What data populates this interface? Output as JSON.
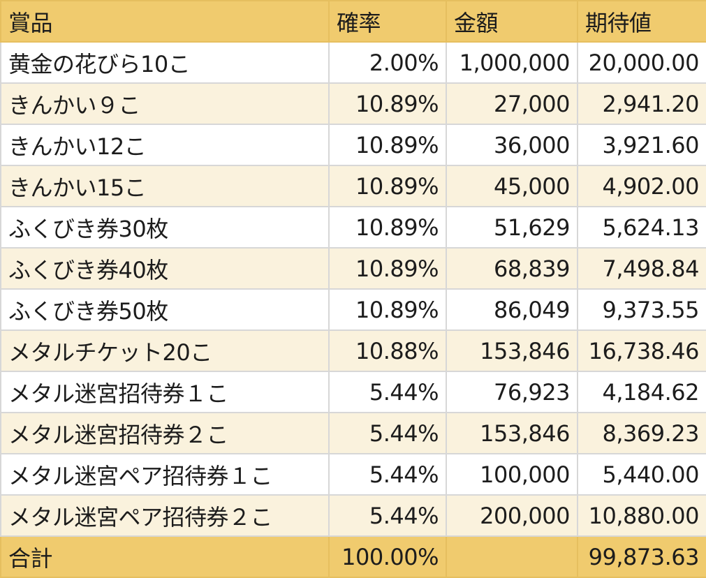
{
  "headers": [
    "賞品",
    "確率",
    "金額",
    "期待値"
  ],
  "rows": [
    [
      "黄金の花びら10こ",
      "2.00%",
      "1,000,000",
      "20,000.00"
    ],
    [
      "きんかい９こ",
      "10.89%",
      "27,000",
      "2,941.20"
    ],
    [
      "きんかい12こ",
      "10.89%",
      "36,000",
      "3,921.60"
    ],
    [
      "きんかい15こ",
      "10.89%",
      "45,000",
      "4,902.00"
    ],
    [
      "ふくびき券30枚",
      "10.89%",
      "51,629",
      "5,624.13"
    ],
    [
      "ふくびき券40枚",
      "10.89%",
      "68,839",
      "7,498.84"
    ],
    [
      "ふくびき券50枚",
      "10.89%",
      "86,049",
      "9,373.55"
    ],
    [
      "メタルチケット20こ",
      "10.88%",
      "153,846",
      "16,738.46"
    ],
    [
      "メタル迷宮招待券１こ",
      "5.44%",
      "76,923",
      "4,184.62"
    ],
    [
      "メタル迷宮招待券２こ",
      "5.44%",
      "153,846",
      "8,369.23"
    ],
    [
      "メタル迷宮ペア招待券１こ",
      "5.44%",
      "100,000",
      "5,440.00"
    ],
    [
      "メタル迷宮ペア招待券２こ",
      "5.44%",
      "200,000",
      "10,880.00"
    ]
  ],
  "total": [
    "合計",
    "100.00%",
    "",
    "99,873.63"
  ],
  "colors": {
    "header_bg": "#f0cb6e",
    "row_alt_bg": "#faf2dd",
    "row_bg": "#ffffff",
    "border": "#d7d7d7"
  }
}
